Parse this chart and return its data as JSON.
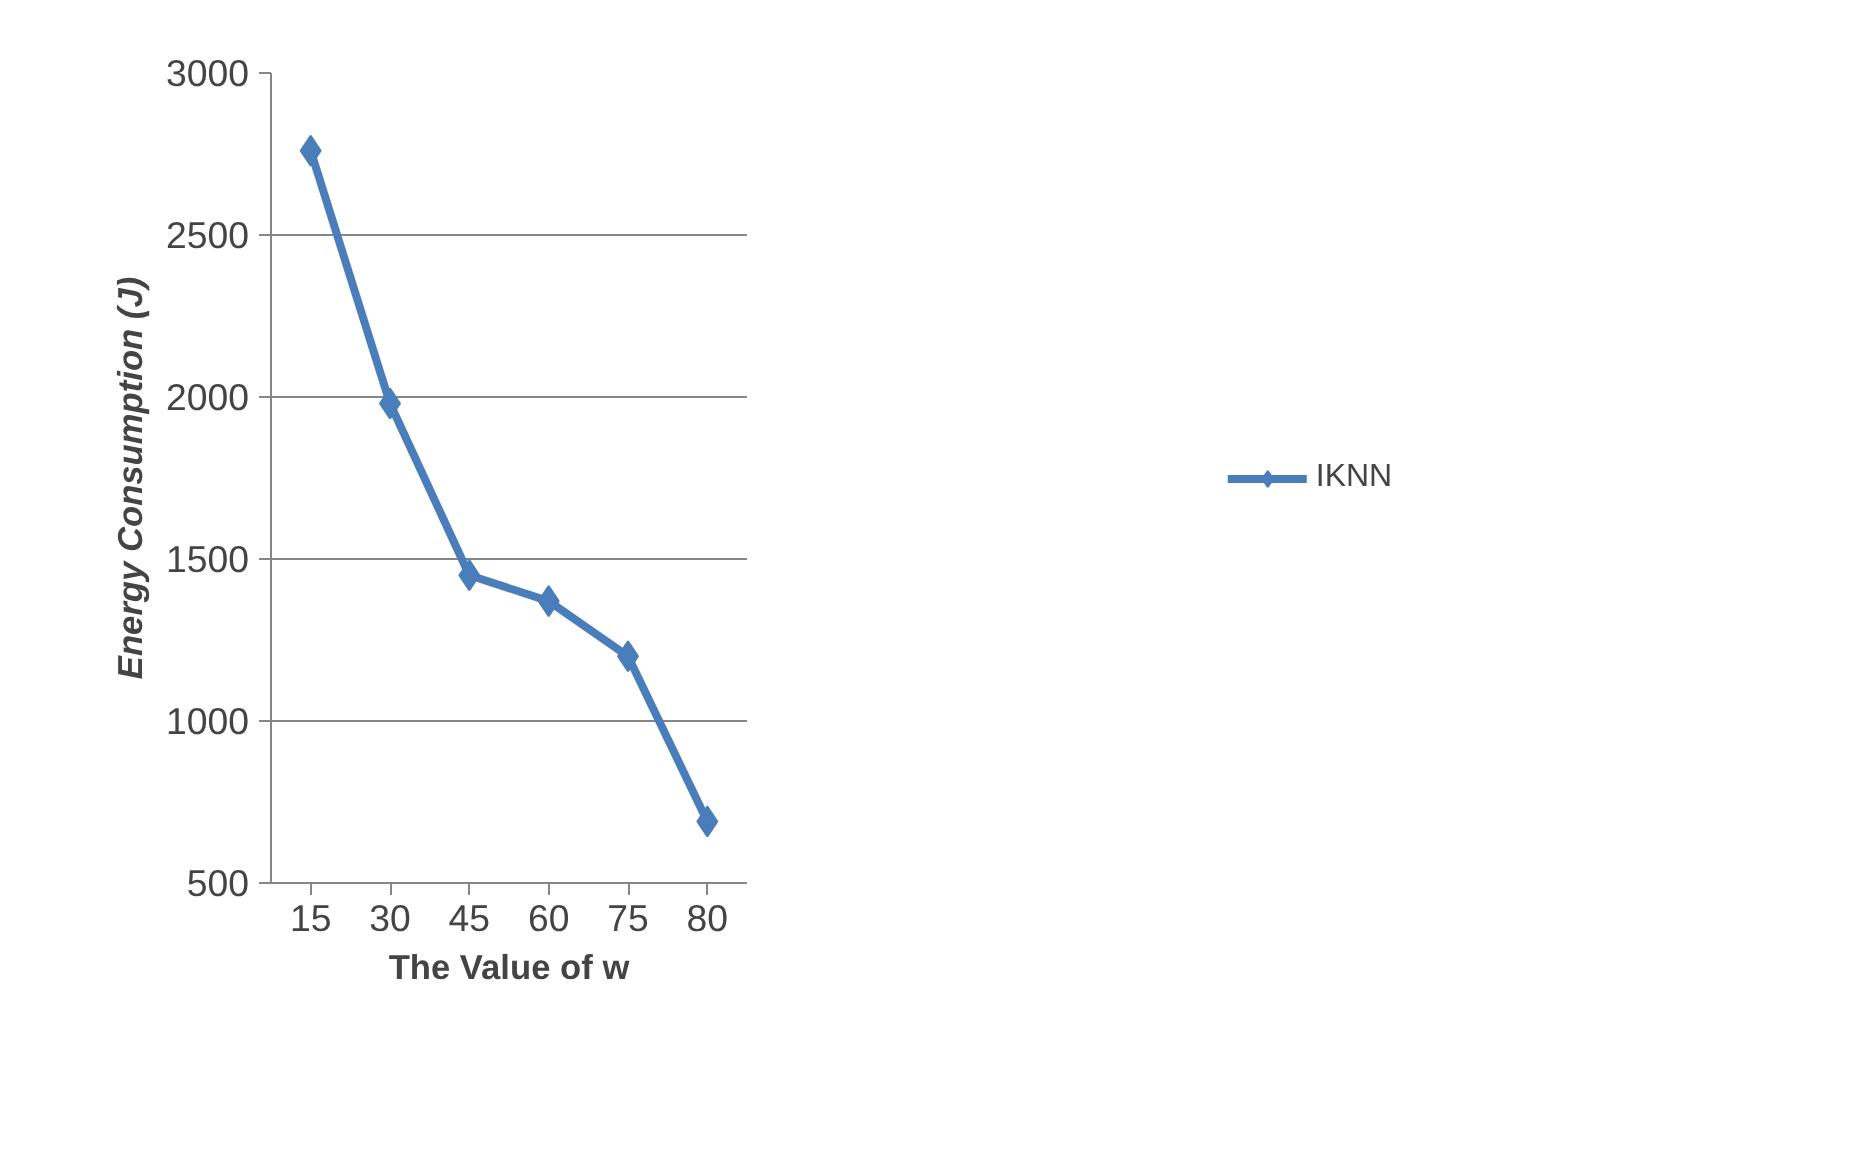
{
  "chart_data": {
    "type": "line",
    "xlabel": "The Value of w",
    "ylabel": "Energy Consumption (J)",
    "categories": [
      "15",
      "30",
      "45",
      "60",
      "75",
      "80"
    ],
    "series": [
      {
        "name": "IKNN",
        "color": "#4a7ebb",
        "values": [
          2760,
          1980,
          1450,
          1370,
          1200,
          690
        ]
      }
    ],
    "ylim": [
      500,
      3000
    ],
    "yticks": [
      500,
      1000,
      1500,
      2000,
      2500,
      3000
    ],
    "grid": "y",
    "legend": "right",
    "marker": "diamond",
    "line_style": "solid"
  }
}
